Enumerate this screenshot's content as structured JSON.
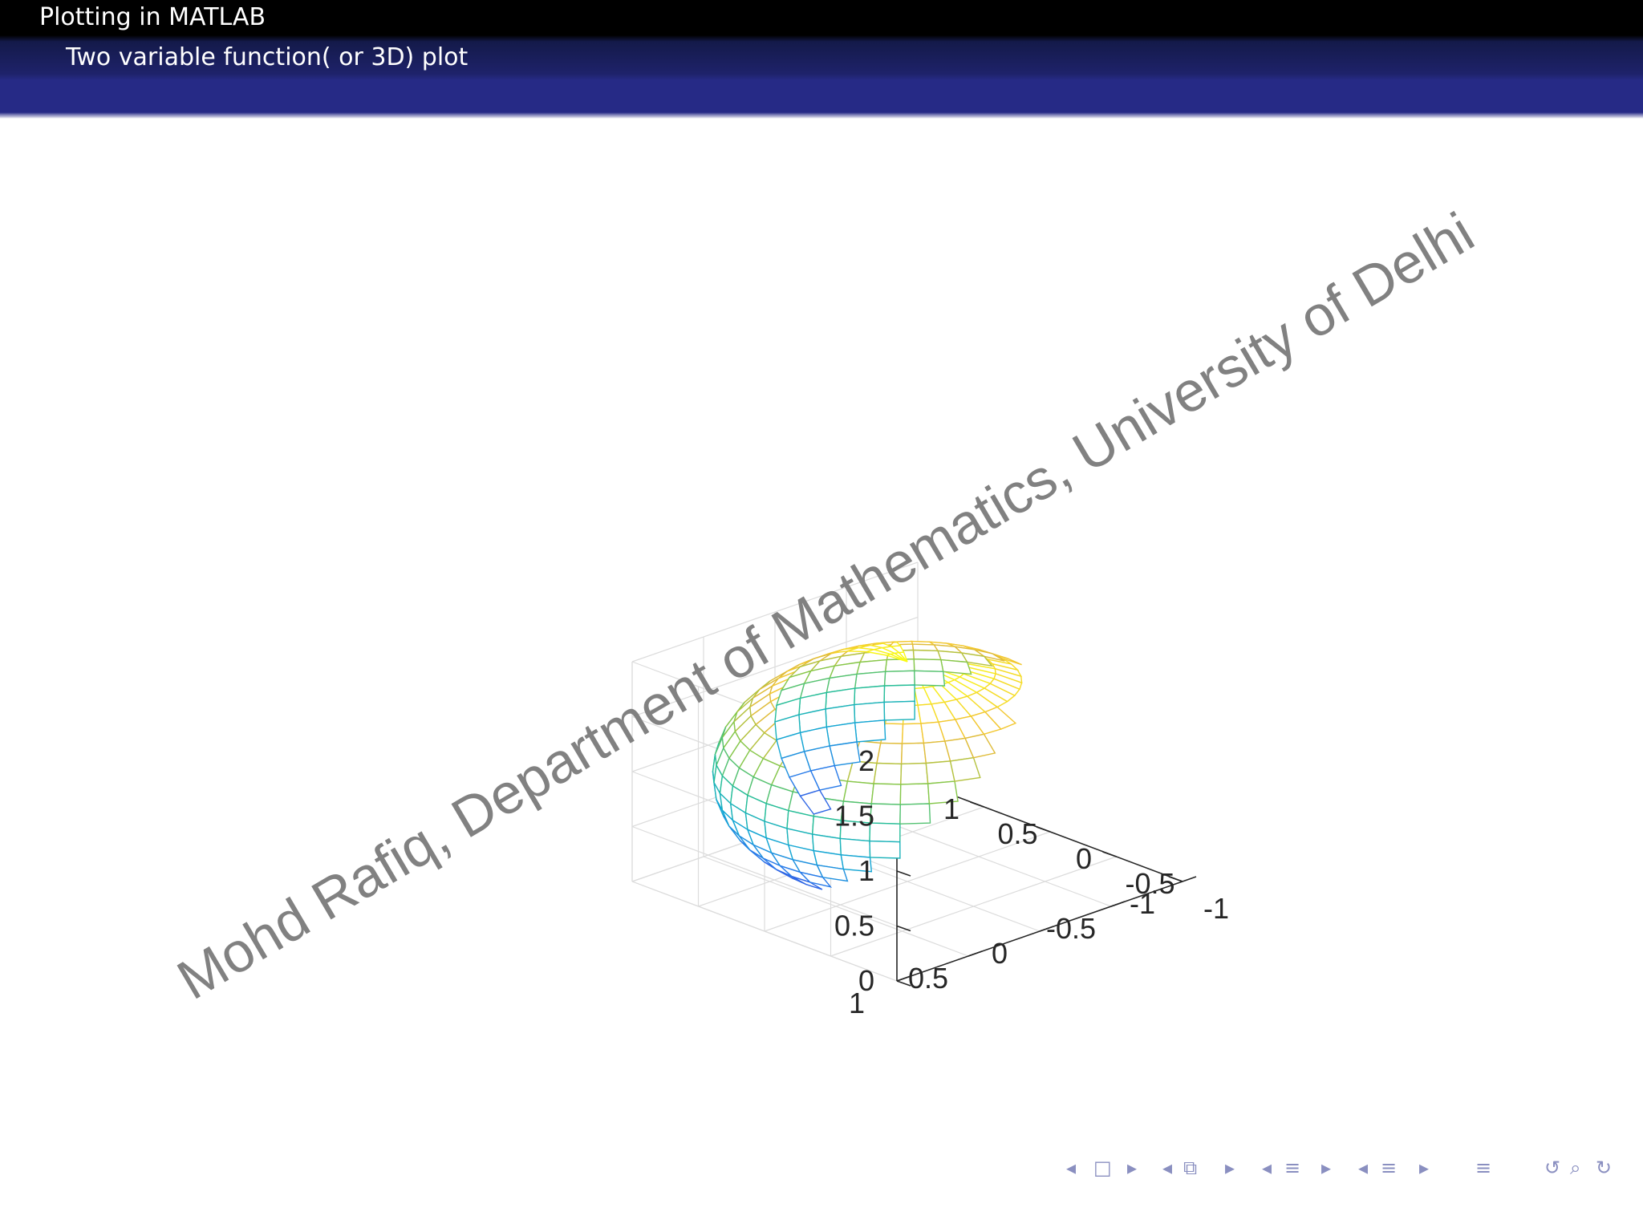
{
  "slide": {
    "title": "Plotting in MATLAB",
    "subtitle": "Two variable function( or 3D) plot",
    "watermark": "Mohd Rafiq, Department of Mathematics, University of Delhi"
  },
  "colors": {
    "header_top": "#000000",
    "header_band": "#262a86",
    "colormap_low": "#3e26a8",
    "colormap_mid": "#21b8b0",
    "colormap_high": "#f9fb15",
    "watermark": "#7a7a7a",
    "nav": "#8a8fc0"
  },
  "chart_data": {
    "type": "surface-mesh",
    "shape": "ellipsoid",
    "colormap": "parula",
    "x": [
      -1,
      1
    ],
    "y": [
      -1,
      1
    ],
    "z": [
      0,
      2
    ],
    "xlim": [
      -1,
      1
    ],
    "ylim": [
      -1,
      1
    ],
    "zlim": [
      0,
      2
    ],
    "xticks": [
      "-1",
      "-0.5",
      "0",
      "0.5",
      "1"
    ],
    "yticks": [
      "-1",
      "-0.5",
      "0",
      "0.5",
      "1"
    ],
    "zticks": [
      "0",
      "0.5",
      "1",
      "1.5",
      "2"
    ],
    "grid": true
  },
  "nav_icons": [
    "nav-first-icon",
    "nav-frame-icon",
    "nav-section-icon",
    "nav-subsection-icon",
    "nav-list-icon",
    "nav-search-icon"
  ]
}
